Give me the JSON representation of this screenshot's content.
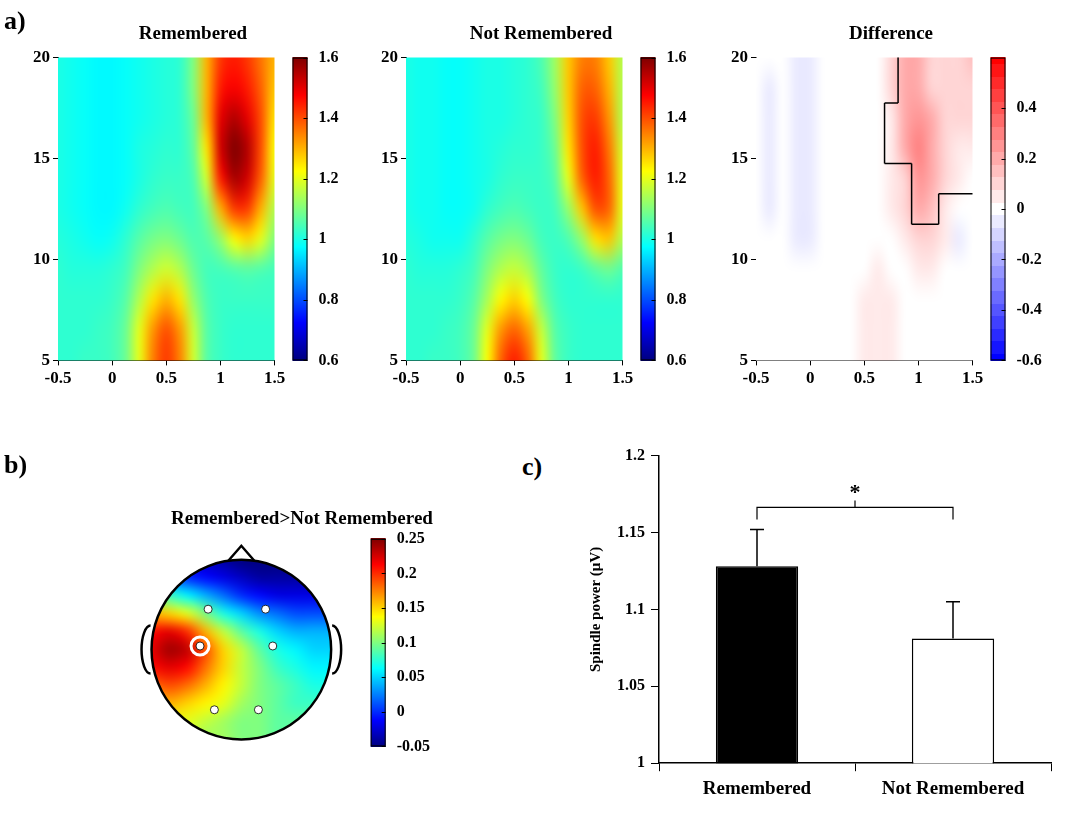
{
  "chart_data": [
    {
      "type": "heatmap",
      "panel": "a)",
      "title": "Remembered",
      "color": "jet",
      "x": [
        -0.5,
        -0.375,
        -0.25,
        -0.125,
        0,
        0.125,
        0.25,
        0.375,
        0.5,
        0.625,
        0.75,
        0.875,
        1,
        1.125,
        1.25,
        1.375,
        1.5
      ],
      "y": [
        5,
        6.5,
        8,
        9.5,
        11,
        12.5,
        14,
        15.5,
        17,
        18.5,
        20
      ],
      "values": [
        [
          1.02,
          1.02,
          1.03,
          1.03,
          1.04,
          1.08,
          1.2,
          1.35,
          1.42,
          1.35,
          1.18,
          1.06,
          1.03,
          1.02,
          1.02,
          1.02,
          1.02
        ],
        [
          1.02,
          1.02,
          1.02,
          1.03,
          1.04,
          1.08,
          1.2,
          1.33,
          1.4,
          1.33,
          1.17,
          1.06,
          1.03,
          1.02,
          1.02,
          1.02,
          1.02
        ],
        [
          1.02,
          1.02,
          1.02,
          1.02,
          1.03,
          1.06,
          1.15,
          1.25,
          1.3,
          1.25,
          1.12,
          1.05,
          1.03,
          1.03,
          1.03,
          1.03,
          1.03
        ],
        [
          1.02,
          1.01,
          1.01,
          1.01,
          1.02,
          1.04,
          1.1,
          1.15,
          1.18,
          1.15,
          1.08,
          1.04,
          1.04,
          1.05,
          1.06,
          1.05,
          1.04
        ],
        [
          1.01,
          1.0,
          0.99,
          0.98,
          0.99,
          1.02,
          1.06,
          1.09,
          1.1,
          1.08,
          1.05,
          1.06,
          1.12,
          1.22,
          1.26,
          1.2,
          1.1
        ],
        [
          1.0,
          0.99,
          0.98,
          0.97,
          0.97,
          0.99,
          1.02,
          1.04,
          1.05,
          1.04,
          1.04,
          1.1,
          1.3,
          1.42,
          1.42,
          1.3,
          1.15
        ],
        [
          1.0,
          0.99,
          0.98,
          0.97,
          0.97,
          0.98,
          1.0,
          1.02,
          1.03,
          1.03,
          1.05,
          1.18,
          1.45,
          1.56,
          1.52,
          1.38,
          1.2
        ],
        [
          1.0,
          0.99,
          0.98,
          0.97,
          0.97,
          0.98,
          1.0,
          1.01,
          1.02,
          1.02,
          1.07,
          1.25,
          1.52,
          1.6,
          1.55,
          1.4,
          1.22
        ],
        [
          1.0,
          0.99,
          0.98,
          0.97,
          0.97,
          0.98,
          0.99,
          1.0,
          1.01,
          1.02,
          1.08,
          1.3,
          1.5,
          1.55,
          1.5,
          1.4,
          1.25
        ],
        [
          1.0,
          0.99,
          0.98,
          0.97,
          0.97,
          0.98,
          0.99,
          1.0,
          1.01,
          1.02,
          1.1,
          1.3,
          1.45,
          1.48,
          1.45,
          1.38,
          1.28
        ],
        [
          1.0,
          0.99,
          0.98,
          0.97,
          0.97,
          0.98,
          0.99,
          1.0,
          1.01,
          1.02,
          1.1,
          1.3,
          1.42,
          1.45,
          1.42,
          1.36,
          1.3
        ]
      ],
      "xlim": [
        -0.5,
        1.5
      ],
      "xticks": [
        -0.5,
        0,
        0.5,
        1,
        1.5
      ],
      "ylim": [
        5,
        20
      ],
      "yticks": [
        5,
        10,
        15,
        20
      ],
      "colorbar": {
        "range": [
          0.6,
          1.6
        ],
        "ticks": [
          0.6,
          0.8,
          1,
          1.2,
          1.4,
          1.6
        ]
      }
    },
    {
      "type": "heatmap",
      "title": "Not Remembered",
      "color": "jet",
      "x": [
        -0.5,
        -0.375,
        -0.25,
        -0.125,
        0,
        0.125,
        0.25,
        0.375,
        0.5,
        0.625,
        0.75,
        0.875,
        1,
        1.125,
        1.25,
        1.375,
        1.5
      ],
      "y": [
        5,
        6.5,
        8,
        9.5,
        11,
        12.5,
        14,
        15.5,
        17,
        18.5,
        20
      ],
      "values": [
        [
          1.02,
          1.02,
          1.03,
          1.03,
          1.04,
          1.08,
          1.22,
          1.38,
          1.45,
          1.38,
          1.2,
          1.07,
          1.03,
          1.02,
          1.02,
          1.02,
          1.02
        ],
        [
          1.02,
          1.02,
          1.02,
          1.03,
          1.04,
          1.08,
          1.2,
          1.33,
          1.38,
          1.32,
          1.17,
          1.06,
          1.03,
          1.02,
          1.02,
          1.02,
          1.02
        ],
        [
          1.02,
          1.02,
          1.02,
          1.02,
          1.03,
          1.06,
          1.14,
          1.23,
          1.27,
          1.22,
          1.1,
          1.04,
          1.02,
          1.02,
          1.02,
          1.02,
          1.02
        ],
        [
          1.02,
          1.01,
          1.01,
          1.01,
          1.02,
          1.04,
          1.1,
          1.15,
          1.17,
          1.14,
          1.07,
          1.03,
          1.02,
          1.03,
          1.06,
          1.08,
          1.05
        ],
        [
          1.01,
          1.0,
          0.99,
          0.99,
          0.99,
          1.02,
          1.06,
          1.09,
          1.1,
          1.08,
          1.04,
          1.03,
          1.05,
          1.12,
          1.25,
          1.28,
          1.15
        ],
        [
          1.0,
          0.99,
          0.99,
          0.98,
          0.98,
          0.99,
          1.02,
          1.04,
          1.05,
          1.04,
          1.03,
          1.04,
          1.12,
          1.28,
          1.4,
          1.38,
          1.2
        ],
        [
          1.0,
          0.99,
          0.99,
          0.98,
          0.98,
          0.99,
          1.0,
          1.02,
          1.03,
          1.03,
          1.03,
          1.06,
          1.2,
          1.38,
          1.45,
          1.38,
          1.2
        ],
        [
          1.0,
          0.99,
          0.99,
          0.98,
          0.98,
          0.99,
          1.0,
          1.01,
          1.02,
          1.02,
          1.03,
          1.08,
          1.25,
          1.4,
          1.45,
          1.36,
          1.18
        ],
        [
          1.0,
          0.99,
          0.99,
          0.98,
          0.98,
          0.99,
          1.0,
          1.0,
          1.01,
          1.02,
          1.03,
          1.1,
          1.27,
          1.4,
          1.42,
          1.33,
          1.15
        ],
        [
          1.0,
          0.99,
          0.99,
          0.98,
          0.98,
          0.99,
          1.0,
          1.0,
          1.01,
          1.02,
          1.04,
          1.12,
          1.28,
          1.38,
          1.38,
          1.3,
          1.15
        ],
        [
          1.0,
          0.99,
          0.99,
          0.98,
          0.98,
          0.99,
          1.0,
          1.0,
          1.01,
          1.02,
          1.05,
          1.13,
          1.28,
          1.35,
          1.35,
          1.28,
          1.15
        ]
      ],
      "xlim": [
        -0.5,
        1.5
      ],
      "xticks": [
        -0.5,
        0,
        0.5,
        1,
        1.5
      ],
      "ylim": [
        5,
        20
      ],
      "yticks": [
        5,
        10,
        15,
        20
      ],
      "colorbar": {
        "range": [
          0.6,
          1.6
        ],
        "ticks": [
          0.6,
          0.8,
          1,
          1.2,
          1.4,
          1.6
        ]
      }
    },
    {
      "type": "heatmap",
      "title": "Difference",
      "color": "diverging",
      "x": [
        -0.5,
        -0.375,
        -0.25,
        -0.125,
        0,
        0.125,
        0.25,
        0.375,
        0.5,
        0.625,
        0.75,
        0.875,
        1,
        1.125,
        1.25,
        1.375,
        1.5
      ],
      "y": [
        5,
        6.5,
        8,
        9.5,
        11,
        12.5,
        14,
        15.5,
        17,
        18.5,
        20
      ],
      "values": [
        [
          0,
          0,
          0,
          0,
          0,
          0,
          0,
          0.02,
          0.05,
          0.05,
          0.03,
          0,
          0,
          0,
          0,
          0,
          0
        ],
        [
          0,
          0,
          0,
          0,
          0,
          0,
          0,
          0.02,
          0.05,
          0.05,
          0.03,
          0,
          0,
          0,
          0,
          0,
          0
        ],
        [
          0,
          0,
          0,
          0,
          0,
          0,
          0,
          0.02,
          0.04,
          0.05,
          0.03,
          0,
          0.02,
          0,
          0,
          0,
          0
        ],
        [
          0,
          0,
          0,
          0,
          -0.02,
          0,
          0,
          0,
          0.02,
          0.03,
          0.02,
          0.02,
          0.04,
          0.03,
          0,
          0,
          0
        ],
        [
          0,
          0,
          0,
          -0.03,
          -0.04,
          0,
          0,
          0,
          0.02,
          0.02,
          0.02,
          0.05,
          0.08,
          0.1,
          0.03,
          -0.05,
          0
        ],
        [
          0,
          -0.03,
          0,
          -0.04,
          -0.04,
          0,
          0,
          0,
          0,
          0,
          0.03,
          0.08,
          0.18,
          0.15,
          0.05,
          0,
          0
        ],
        [
          0,
          -0.03,
          0,
          -0.04,
          -0.04,
          0,
          0,
          0,
          0,
          0.02,
          0.05,
          0.12,
          0.25,
          0.2,
          0.1,
          0.05,
          0.02
        ],
        [
          0,
          -0.03,
          0,
          -0.04,
          -0.04,
          0,
          0,
          0,
          0,
          0.02,
          0.06,
          0.2,
          0.28,
          0.22,
          0.12,
          0.06,
          0.06
        ],
        [
          0,
          -0.03,
          0,
          -0.03,
          -0.04,
          0,
          0,
          0,
          0,
          0.02,
          0.06,
          0.22,
          0.25,
          0.18,
          0.1,
          0.08,
          0.1
        ],
        [
          0,
          -0.03,
          0,
          -0.03,
          -0.03,
          0,
          0,
          0,
          0,
          0.02,
          0.08,
          0.2,
          0.2,
          0.12,
          0.1,
          0.1,
          0.12
        ],
        [
          0,
          -0.02,
          0,
          -0.03,
          -0.03,
          0,
          0,
          0,
          0,
          0.02,
          0.08,
          0.18,
          0.18,
          0.12,
          0.1,
          0.1,
          0.15
        ]
      ],
      "significant": [
        [
          0,
          0,
          0,
          0,
          0,
          0,
          0,
          0,
          0,
          0,
          0,
          0,
          0,
          0,
          0,
          0,
          0
        ],
        [
          0,
          0,
          0,
          0,
          0,
          0,
          0,
          0,
          0,
          0,
          0,
          0,
          0,
          0,
          0,
          0,
          0
        ],
        [
          0,
          0,
          0,
          0,
          0,
          0,
          0,
          0,
          0,
          0,
          0,
          0,
          0,
          0,
          0,
          0,
          0
        ],
        [
          0,
          0,
          0,
          0,
          0,
          0,
          0,
          0,
          0,
          0,
          0,
          0,
          0,
          0,
          0,
          0,
          0
        ],
        [
          0,
          0,
          0,
          0,
          0,
          0,
          0,
          0,
          0,
          0,
          0,
          0,
          0,
          0,
          0,
          0,
          0
        ],
        [
          0,
          0,
          0,
          0,
          0,
          0,
          0,
          0,
          0,
          0,
          0,
          0,
          1,
          1,
          0,
          0,
          0
        ],
        [
          0,
          0,
          0,
          0,
          0,
          0,
          0,
          0,
          0,
          0,
          0,
          0,
          1,
          1,
          1,
          1,
          1
        ],
        [
          0,
          0,
          0,
          0,
          0,
          0,
          0,
          0,
          0,
          0,
          1,
          1,
          1,
          1,
          1,
          1,
          1
        ],
        [
          0,
          0,
          0,
          0,
          0,
          0,
          0,
          0,
          0,
          0,
          1,
          1,
          1,
          1,
          1,
          1,
          1
        ],
        [
          0,
          0,
          0,
          0,
          0,
          0,
          0,
          0,
          0,
          0,
          0,
          1,
          1,
          1,
          1,
          1,
          1
        ],
        [
          0,
          0,
          0,
          0,
          0,
          0,
          0,
          0,
          0,
          0,
          0,
          1,
          1,
          1,
          1,
          1,
          1
        ]
      ],
      "xlim": [
        -0.5,
        1.5
      ],
      "xticks": [
        -0.5,
        0,
        0.5,
        1,
        1.5
      ],
      "ylim": [
        5,
        20
      ],
      "yticks": [
        5,
        10,
        15,
        20
      ],
      "colorbar": {
        "range": [
          -0.6,
          0.6
        ],
        "ticks": [
          -0.6,
          -0.4,
          -0.2,
          0,
          0.2,
          0.4
        ]
      }
    },
    {
      "type": "topomap",
      "panel": "b)",
      "title": "Remembered>Not Remembered",
      "color": "jet",
      "values": [
        [
          0.0,
          -0.01,
          -0.02,
          -0.03,
          -0.04,
          -0.05,
          -0.05,
          -0.05,
          -0.05,
          -0.05,
          -0.05
        ],
        [
          0.04,
          0.02,
          0.0,
          -0.01,
          -0.02,
          -0.03,
          -0.04,
          -0.04,
          -0.04,
          -0.04,
          -0.04
        ],
        [
          0.1,
          0.08,
          0.06,
          0.04,
          0.02,
          0.0,
          -0.01,
          -0.02,
          -0.02,
          -0.02,
          -0.02
        ],
        [
          0.16,
          0.15,
          0.13,
          0.1,
          0.07,
          0.05,
          0.03,
          0.02,
          0.01,
          0.01,
          0.01
        ],
        [
          0.21,
          0.22,
          0.2,
          0.16,
          0.12,
          0.09,
          0.07,
          0.05,
          0.04,
          0.04,
          0.04
        ],
        [
          0.22,
          0.24,
          0.23,
          0.19,
          0.15,
          0.12,
          0.09,
          0.07,
          0.06,
          0.05,
          0.05
        ],
        [
          0.21,
          0.22,
          0.21,
          0.18,
          0.15,
          0.12,
          0.1,
          0.08,
          0.07,
          0.06,
          0.06
        ],
        [
          0.18,
          0.19,
          0.18,
          0.16,
          0.14,
          0.12,
          0.1,
          0.09,
          0.08,
          0.07,
          0.07
        ],
        [
          0.15,
          0.16,
          0.15,
          0.14,
          0.13,
          0.11,
          0.1,
          0.09,
          0.08,
          0.08,
          0.08
        ],
        [
          0.13,
          0.13,
          0.13,
          0.12,
          0.11,
          0.1,
          0.1,
          0.09,
          0.09,
          0.09,
          0.09
        ],
        [
          0.12,
          0.12,
          0.12,
          0.11,
          0.11,
          0.1,
          0.1,
          0.09,
          0.09,
          0.09,
          0.09
        ]
      ],
      "colorbar": {
        "range": [
          -0.05,
          0.25
        ],
        "ticks": [
          -0.05,
          0,
          0.05,
          0.1,
          0.15,
          0.2,
          0.25
        ]
      }
    },
    {
      "type": "bar",
      "panel": "c)",
      "categories": [
        "Remembered",
        "Not Remembered"
      ],
      "values": [
        1.128,
        1.081
      ],
      "errors": [
        0.024,
        0.024
      ],
      "colors": [
        "#000000",
        "#ffffff"
      ],
      "ylabel": "Spindle power (μV)",
      "ylim": [
        1,
        1.2
      ],
      "yticks": [
        1,
        1.05,
        1.1,
        1.15,
        1.2
      ],
      "annotations": [
        {
          "text": "*",
          "between": [
            "Remembered",
            "Not Remembered"
          ]
        }
      ]
    }
  ]
}
